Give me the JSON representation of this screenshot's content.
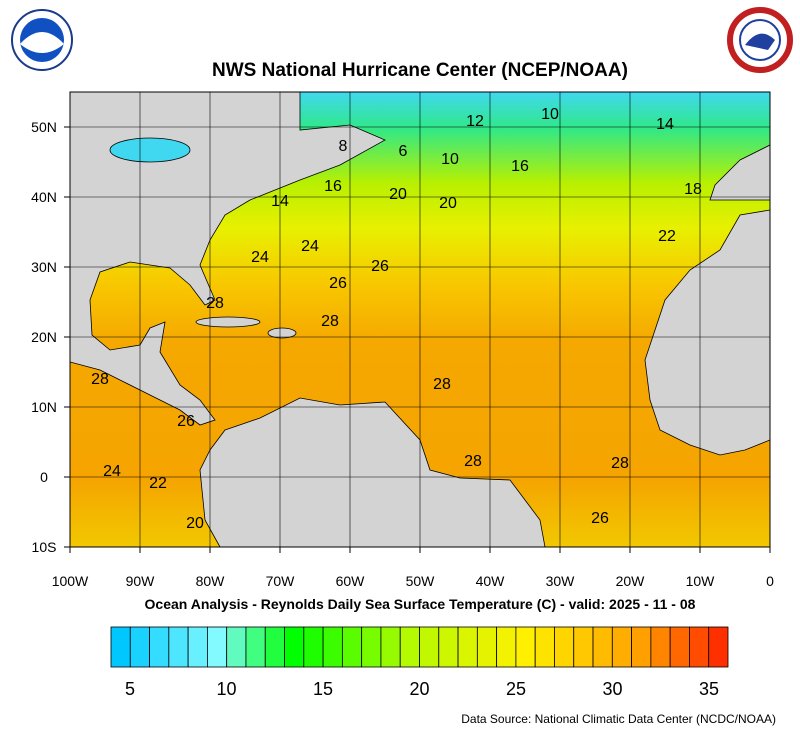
{
  "title": "NWS National Hurricane Center (NCEP/NOAA)",
  "subtitle": "Ocean Analysis - Reynolds Daily Sea Surface Temperature (C) - valid: 2025 - 11 - 08",
  "source": "Data Source: National Climatic Data Center (NCDC/NOAA)",
  "map": {
    "lon_ticks": [
      "100W",
      "90W",
      "80W",
      "70W",
      "60W",
      "50W",
      "40W",
      "30W",
      "20W",
      "10W",
      "0"
    ],
    "lat_ticks": [
      "50N",
      "40N",
      "30N",
      "20N",
      "10N",
      "0",
      "10S"
    ],
    "contour_labels": [
      "10",
      "12",
      "14",
      "8",
      "6",
      "10",
      "16",
      "16",
      "18",
      "20",
      "14",
      "20",
      "22",
      "24",
      "24",
      "26",
      "26",
      "28",
      "28",
      "28",
      "28",
      "26",
      "28",
      "28",
      "24",
      "22",
      "26",
      "20"
    ]
  },
  "colorbar": {
    "labels": [
      "5",
      "10",
      "15",
      "20",
      "25",
      "30",
      "35"
    ]
  }
}
